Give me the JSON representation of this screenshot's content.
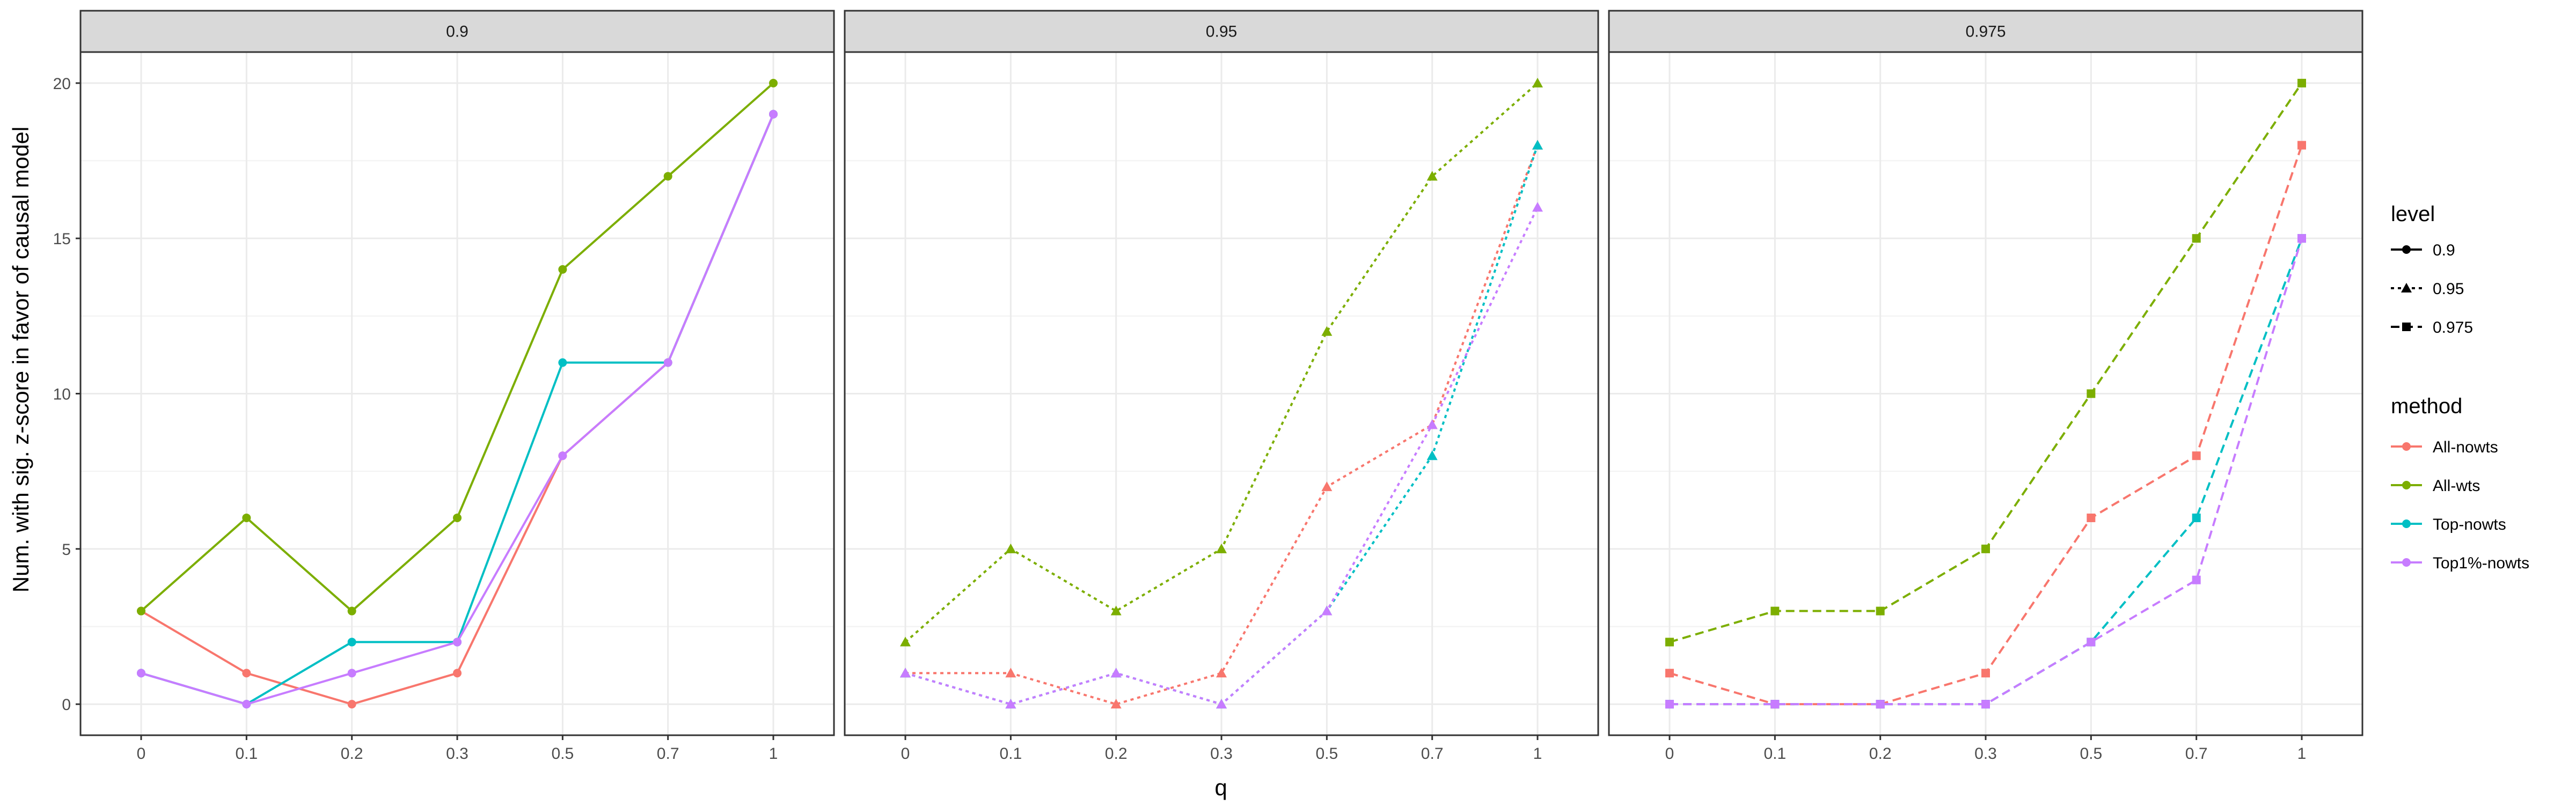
{
  "chart_data": {
    "type": "line",
    "xlabel": "q",
    "ylabel": "Num. with sig. z-score in favor of causal model",
    "x": [
      "0",
      "0.1",
      "0.2",
      "0.3",
      "0.5",
      "0.7",
      "1"
    ],
    "ylim": [
      -1,
      21
    ],
    "yticks": [
      "0",
      "5",
      "10",
      "15",
      "20"
    ],
    "grid": true,
    "legend_position": "right",
    "legends": {
      "level": {
        "title": "level",
        "entries": [
          "0.9",
          "0.95",
          "0.975"
        ]
      },
      "method": {
        "title": "method",
        "entries": [
          "All-nowts",
          "All-wts",
          "Top-nowts",
          "Top1%-nowts"
        ]
      }
    },
    "colors": {
      "All-nowts": "#F8766D",
      "All-wts": "#7CAE00",
      "Top-nowts": "#00BFC4",
      "Top1%-nowts": "#C77CFF"
    },
    "line_styles": {
      "0.9": "solid",
      "0.95": "dotted",
      "0.975": "dashed"
    },
    "markers": {
      "0.9": "circle",
      "0.95": "triangle",
      "0.975": "square"
    },
    "panels": [
      {
        "label": "0.9",
        "series": [
          {
            "name": "All-nowts",
            "values": [
              3,
              1,
              0,
              1,
              8,
              11,
              19
            ]
          },
          {
            "name": "All-wts",
            "values": [
              3,
              6,
              3,
              6,
              14,
              17,
              20
            ]
          },
          {
            "name": "Top-nowts",
            "values": [
              1,
              0,
              2,
              2,
              11,
              11,
              19
            ]
          },
          {
            "name": "Top1%-nowts",
            "values": [
              1,
              0,
              1,
              2,
              8,
              11,
              19
            ]
          }
        ]
      },
      {
        "label": "0.95",
        "series": [
          {
            "name": "All-nowts",
            "values": [
              1,
              1,
              0,
              1,
              7,
              9,
              18
            ]
          },
          {
            "name": "All-wts",
            "values": [
              2,
              5,
              3,
              5,
              12,
              17,
              20
            ]
          },
          {
            "name": "Top-nowts",
            "values": [
              1,
              0,
              1,
              0,
              3,
              8,
              18
            ]
          },
          {
            "name": "Top1%-nowts",
            "values": [
              1,
              0,
              1,
              0,
              3,
              9,
              16
            ]
          }
        ]
      },
      {
        "label": "0.975",
        "series": [
          {
            "name": "All-nowts",
            "values": [
              1,
              0,
              0,
              1,
              6,
              8,
              18
            ]
          },
          {
            "name": "All-wts",
            "values": [
              2,
              3,
              3,
              5,
              10,
              15,
              20
            ]
          },
          {
            "name": "Top-nowts",
            "values": [
              0,
              0,
              0,
              0,
              2,
              6,
              15
            ]
          },
          {
            "name": "Top1%-nowts",
            "values": [
              0,
              0,
              0,
              0,
              2,
              4,
              15
            ]
          }
        ]
      }
    ]
  }
}
